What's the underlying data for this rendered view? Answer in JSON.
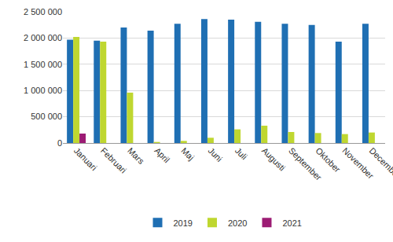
{
  "chart_data": {
    "type": "bar",
    "categories": [
      "Januari",
      "Februari",
      "Mars",
      "April",
      "Maj",
      "Juni",
      "Juli",
      "Augusti",
      "September",
      "Oktober",
      "November",
      "December"
    ],
    "series": [
      {
        "name": "2019",
        "color": "#1f6fb3",
        "values": [
          1970000,
          1950000,
          2200000,
          2140000,
          2270000,
          2360000,
          2350000,
          2310000,
          2270000,
          2250000,
          1930000,
          2270000
        ]
      },
      {
        "name": "2020",
        "color": "#bfd730",
        "values": [
          2020000,
          1930000,
          960000,
          20000,
          40000,
          100000,
          260000,
          330000,
          210000,
          190000,
          170000,
          200000
        ]
      },
      {
        "name": "2021",
        "color": "#9c1c74",
        "values": [
          180000,
          null,
          null,
          null,
          null,
          null,
          null,
          null,
          null,
          null,
          null,
          null
        ]
      }
    ],
    "ylim": [
      0,
      2500000
    ],
    "yticks": [
      0,
      {
        "value": 500000,
        "label": "500 000"
      },
      {
        "value": 1000000,
        "label": "1 000 000"
      },
      {
        "value": 1500000,
        "label": "1 500 000"
      },
      {
        "value": 2000000,
        "label": "2 000 000"
      },
      {
        "value": 2500000,
        "label": "2 500 000"
      }
    ],
    "grid": true,
    "legend": "bottom"
  }
}
